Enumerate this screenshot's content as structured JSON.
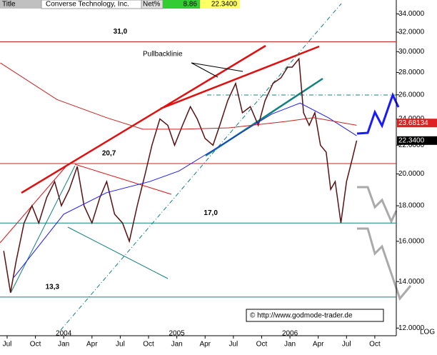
{
  "header": {
    "title_tab": "Title",
    "name": "Converse Technology, Inc.",
    "net_label": "Net%",
    "net_value": "8.86",
    "last_price": "22.3400"
  },
  "chart_data": {
    "type": "line",
    "log_scale": true,
    "axis_label": "LOG",
    "xlim": [
      2003.437,
      2006.94
    ],
    "ylim": [
      11.7,
      35.6
    ],
    "yticks": [
      {
        "value": 12,
        "label": "12.0000"
      },
      {
        "value": 14,
        "label": "14.0000"
      },
      {
        "value": 16,
        "label": "16.0000"
      },
      {
        "value": 18,
        "label": "18.0000"
      },
      {
        "value": 20,
        "label": "20.0000"
      },
      {
        "value": 22,
        "label": "22.0000"
      },
      {
        "value": 24,
        "label": "24.0000"
      },
      {
        "value": 26,
        "label": "26.0000"
      },
      {
        "value": 28,
        "label": "28.0000"
      },
      {
        "value": 30,
        "label": "30.0000"
      },
      {
        "value": 32,
        "label": "32.0000"
      },
      {
        "value": 34,
        "label": "34.0000"
      }
    ],
    "xticks": [
      {
        "value": 2003.5,
        "label": "Jul"
      },
      {
        "value": 2003.75,
        "label": "Oct"
      },
      {
        "value": 2004.0,
        "label": "Jan"
      },
      {
        "value": 2004.25,
        "label": "Apr"
      },
      {
        "value": 2004.5,
        "label": "Jul"
      },
      {
        "value": 2004.75,
        "label": "Oct"
      },
      {
        "value": 2005.0,
        "label": "Jan"
      },
      {
        "value": 2005.25,
        "label": "Apr"
      },
      {
        "value": 2005.5,
        "label": "Jul"
      },
      {
        "value": 2005.75,
        "label": "Oct"
      },
      {
        "value": 2006.0,
        "label": "Jan"
      },
      {
        "value": 2006.25,
        "label": "Apr"
      },
      {
        "value": 2006.5,
        "label": "Jul"
      },
      {
        "value": 2006.75,
        "label": "Oct"
      }
    ],
    "year_ticks": [
      2004,
      2005,
      2006
    ],
    "levels": [
      {
        "value": 31.0,
        "label": "31,0",
        "at": 2004.5
      },
      {
        "value": 20.7,
        "label": "20,7",
        "at": 2004.4
      },
      {
        "value": 17.0,
        "label": "17,0",
        "at": 2005.3
      },
      {
        "value": 13.3,
        "label": "13,3",
        "at": 2003.9
      }
    ],
    "value_boxes": [
      {
        "value": 23.68134,
        "label": "23.68134",
        "color": "#e02020"
      },
      {
        "value": 22.34,
        "label": "22.3400",
        "color": "#000000"
      }
    ],
    "annotation": "Pullbacklinie",
    "copyright": "© http://www.godmode-trader.de",
    "series": [
      {
        "name": "Price",
        "color": "#5a1010",
        "x": [
          2003.47,
          2003.53,
          2003.58,
          2003.65,
          2003.72,
          2003.78,
          2003.85,
          2003.92,
          2003.98,
          2004.05,
          2004.12,
          2004.18,
          2004.25,
          2004.32,
          2004.38,
          2004.45,
          2004.52,
          2004.58,
          2004.65,
          2004.72,
          2004.78,
          2004.85,
          2004.92,
          2004.98,
          2005.05,
          2005.12,
          2005.18,
          2005.25,
          2005.32,
          2005.38,
          2005.45,
          2005.52,
          2005.58,
          2005.65,
          2005.72,
          2005.78,
          2005.85,
          2005.92,
          2005.98,
          2006.02,
          2006.08,
          2006.12,
          2006.17,
          2006.22,
          2006.27,
          2006.32,
          2006.36,
          2006.4,
          2006.45,
          2006.5,
          2006.55,
          2006.59
        ],
        "values": [
          15.5,
          13.5,
          15.0,
          17.0,
          18.0,
          17.0,
          18.5,
          19.5,
          18.0,
          19.0,
          20.5,
          18.0,
          17.0,
          18.5,
          19.5,
          17.5,
          17.0,
          16.0,
          18.0,
          20.0,
          22.0,
          24.0,
          23.5,
          22.0,
          23.5,
          25.0,
          24.0,
          22.5,
          22.0,
          23.5,
          25.5,
          27.0,
          24.5,
          25.0,
          23.5,
          25.5,
          27.0,
          27.5,
          28.5,
          28.5,
          29.3,
          24.5,
          23.5,
          24.5,
          22.0,
          21.5,
          19.0,
          19.5,
          17.0,
          19.5,
          21.0,
          22.34
        ]
      },
      {
        "name": "MA blue",
        "color": "#1a1aff",
        "x": [
          2003.56,
          2004.0,
          2004.38,
          2004.76,
          2005.02,
          2005.27,
          2005.84,
          2006.09,
          2006.34,
          2006.59
        ],
        "values": [
          14.2,
          17.5,
          18.8,
          19.5,
          20.2,
          21.4,
          24.4,
          25.3,
          24.1,
          22.7
        ]
      },
      {
        "name": "MA red",
        "color": "#cc2020",
        "x": [
          2003.44,
          2003.94,
          2004.38,
          2004.7,
          2005.02,
          2005.46,
          2005.96,
          2006.21,
          2006.59
        ],
        "values": [
          28.9,
          25.6,
          24.1,
          23.2,
          23.2,
          23.3,
          23.8,
          24.1,
          23.5
        ]
      }
    ]
  }
}
